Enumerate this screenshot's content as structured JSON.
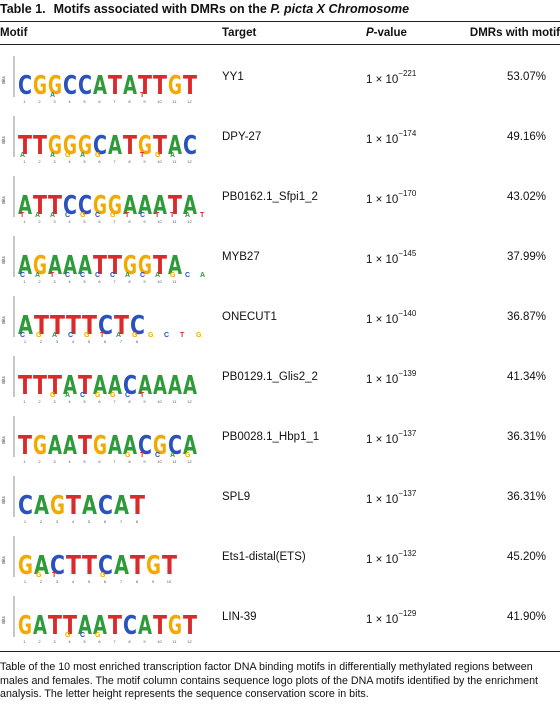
{
  "table": {
    "label": "Table 1.",
    "title_prefix": "Motifs associated with DMRs on the",
    "title_italic": "P. picta X Chromosome",
    "headers": {
      "motif": "Motif",
      "target": "Target",
      "pvalue_italic": "P",
      "pvalue_rest": "-value",
      "dmrs": "DMRs with motif"
    },
    "rows": [
      {
        "logo": "CGGCCATATTGT",
        "small": "  A     T   ",
        "target": "YY1",
        "p_base": "1 × 10",
        "p_exp": "−221",
        "pct": "53.07%"
      },
      {
        "logo": "TTGGGCATGTAC",
        "small": "A AGAG  TGA ",
        "target": "DPY-27",
        "p_base": "1 × 10",
        "p_exp": "−174",
        "pct": "49.16%"
      },
      {
        "logo": "ATTCCGGAAATA",
        "small": "TAACGCGTCTTAT",
        "target": "PB0162.1_Sfpi1_2",
        "p_base": "1 × 10",
        "p_exp": "−170",
        "pct": "43.02%"
      },
      {
        "logo": "AGAAATTGGTA",
        "small": "CATCCCCACAGCA",
        "target": "MYB27",
        "p_base": "1 × 10",
        "p_exp": "−145",
        "pct": "37.99%"
      },
      {
        "logo": "ATTTTCTC",
        "small": "CGACGTAGGCTG",
        "target": "ONECUT1",
        "p_base": "1 × 10",
        "p_exp": "−140",
        "pct": "36.87%"
      },
      {
        "logo": "TTTATAACAAAA",
        "small": "  GACGGCT   ",
        "target": "PB0129.1_Glis2_2",
        "p_base": "1 × 10",
        "p_exp": "−139",
        "pct": "41.34%"
      },
      {
        "logo": "TGAATGAACGCA",
        "small": "       GTCAG ",
        "target": "PB0028.1_Hbp1_1",
        "p_base": "1 × 10",
        "p_exp": "−137",
        "pct": "36.31%"
      },
      {
        "logo": "CAGTACAT",
        "small": "",
        "target": "SPL9",
        "p_base": "1 × 10",
        "p_exp": "−137",
        "pct": "36.31%"
      },
      {
        "logo": "GACTTCATGT",
        "small": " GT  G     ",
        "target": "Ets1-distal(ETS)",
        "p_base": "1 × 10",
        "p_exp": "−132",
        "pct": "45.20%"
      },
      {
        "logo": "GATTAATCATGT",
        "small": "   GCG      ",
        "target": "LIN-39",
        "p_base": "1 × 10",
        "p_exp": "−129",
        "pct": "41.90%"
      }
    ],
    "axis_label": "Bits",
    "footnote": "Table of the 10 most enriched transcription factor DNA binding motifs in differentially methylated regions between males and females. The motif column contains sequence logo plots of the DNA motifs identified by the enrichment analysis. The letter height represents the sequence conservation score in bits."
  },
  "colors": {
    "A": "#2e9a3a",
    "C": "#2a52be",
    "G": "#f2a900",
    "T": "#d92b2b"
  }
}
